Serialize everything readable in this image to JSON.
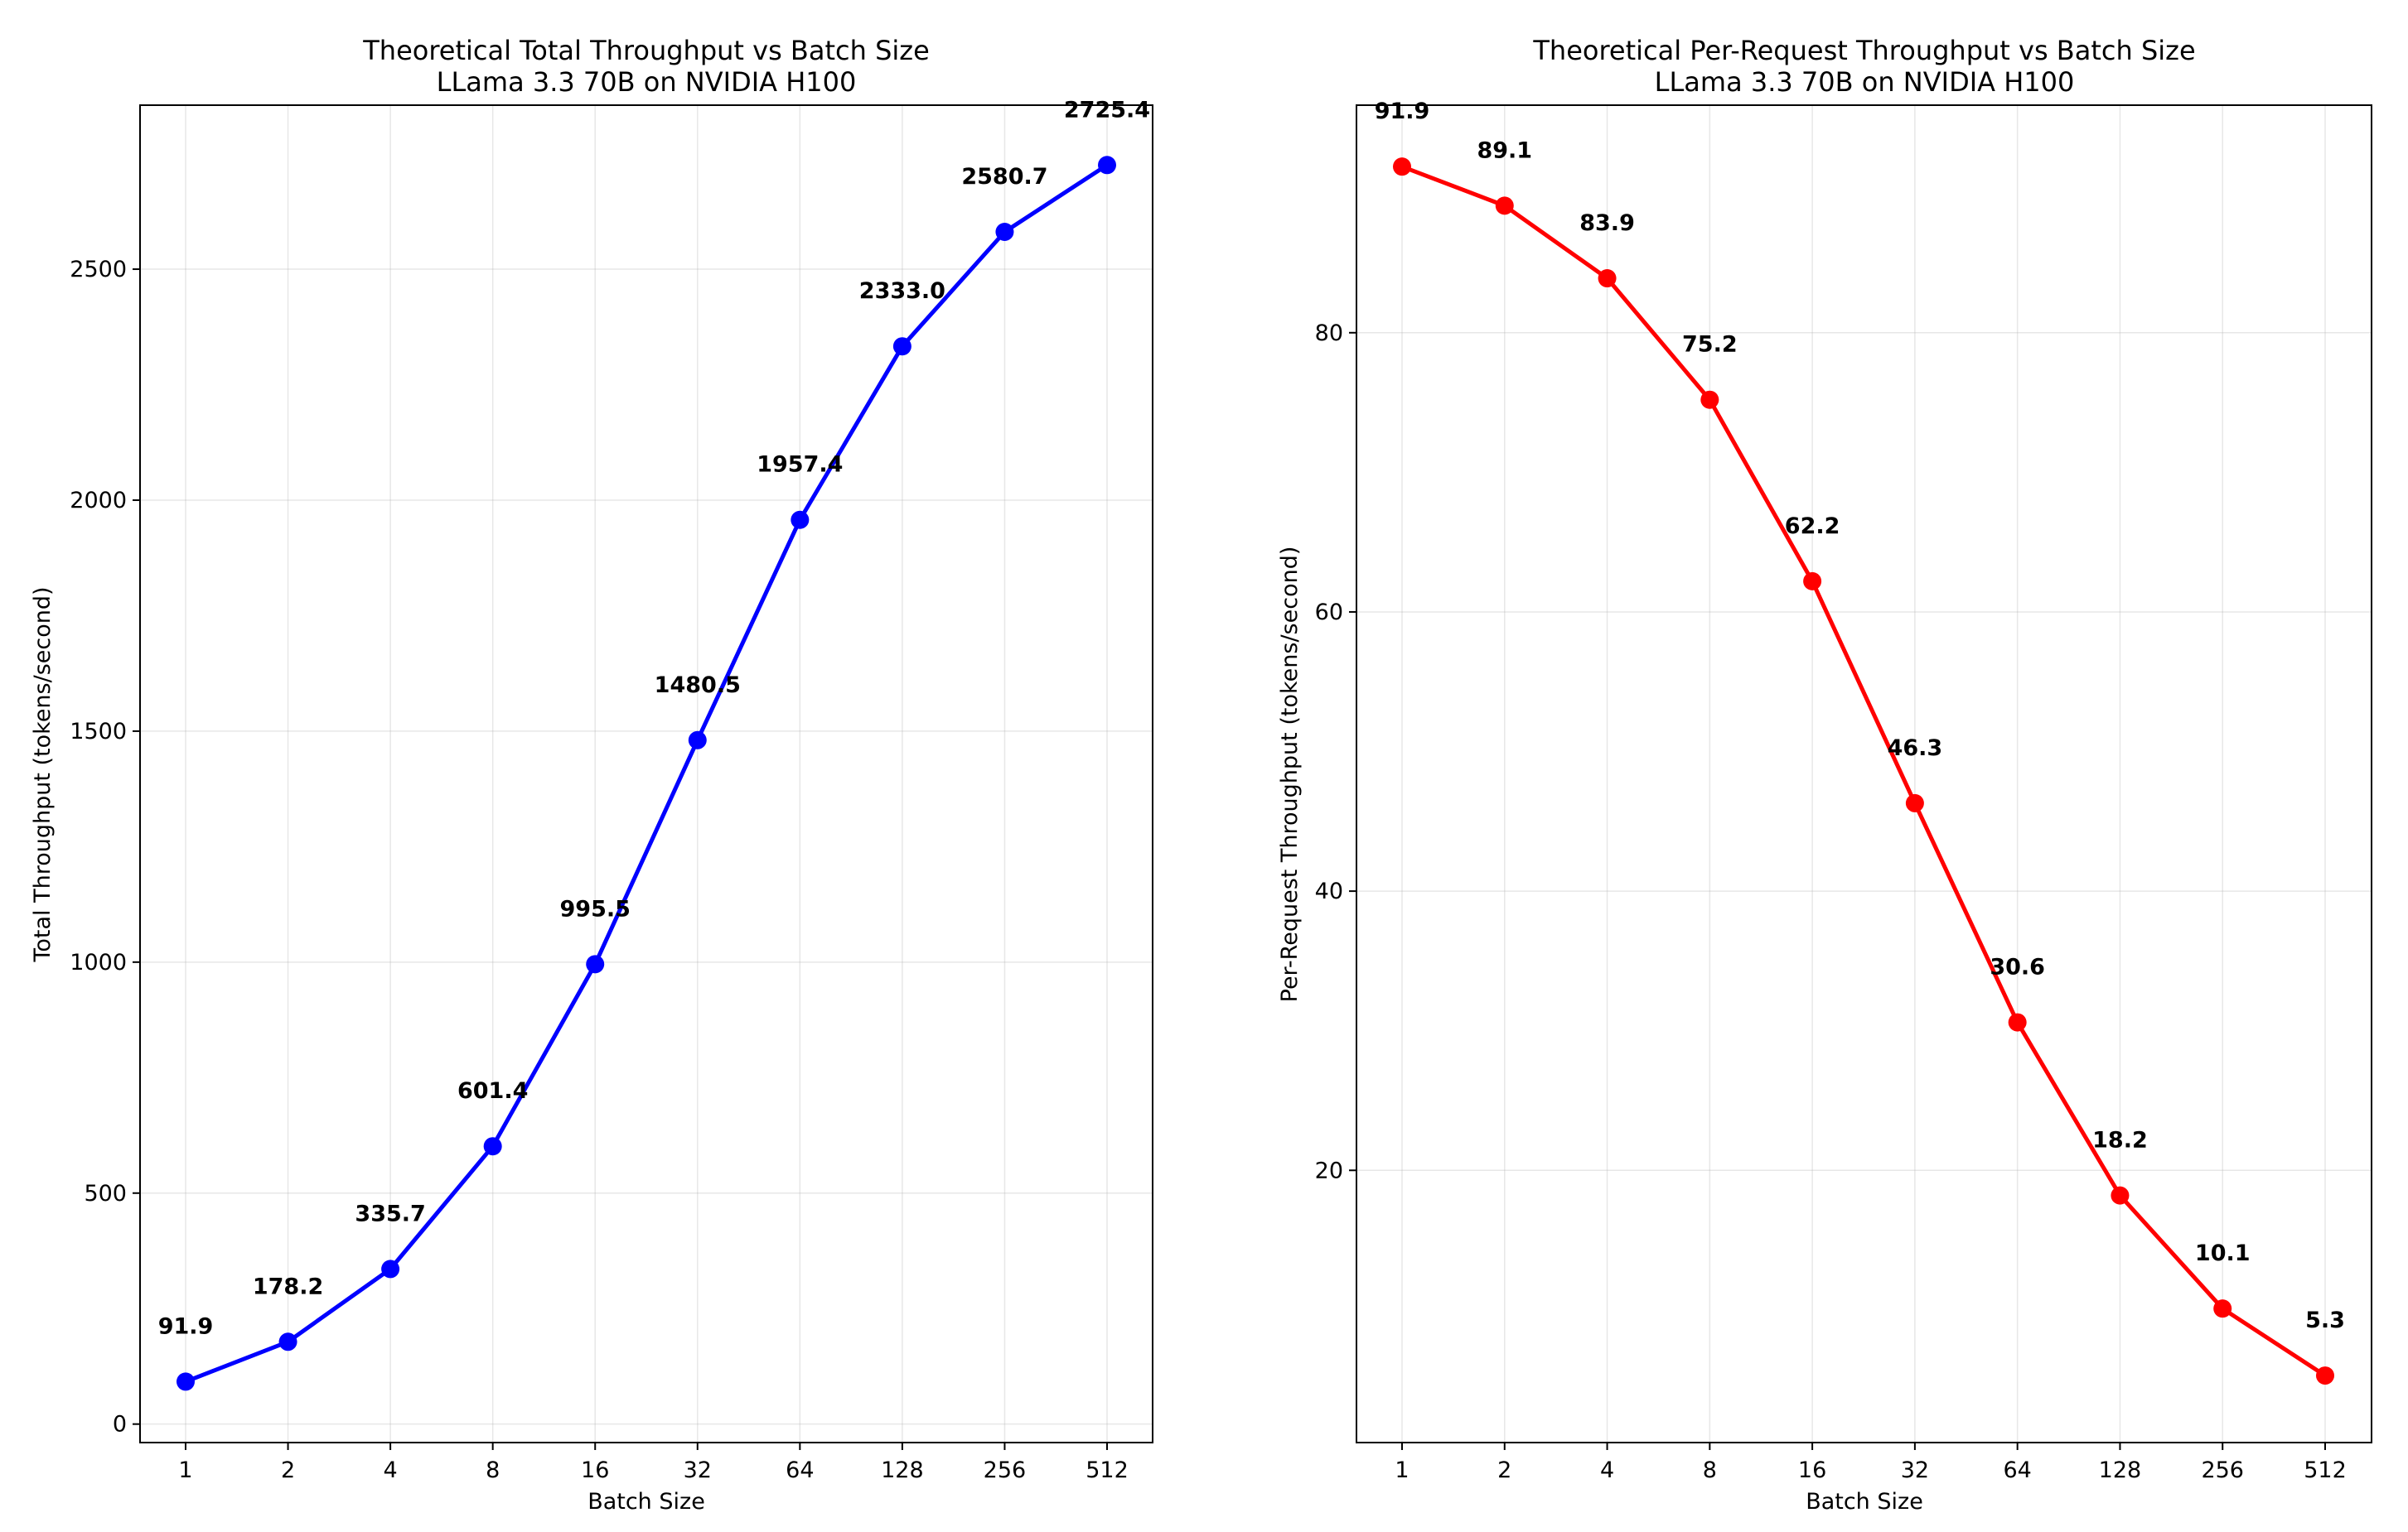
{
  "chart_data": [
    {
      "type": "line",
      "title": "Theoretical Total Throughput vs Batch Size",
      "subtitle": "LLama 3.3 70B on NVIDIA H100",
      "xlabel": "Batch Size",
      "ylabel": "Total Throughput (tokens/second)",
      "categories": [
        "1",
        "2",
        "4",
        "8",
        "16",
        "32",
        "64",
        "128",
        "256",
        "512"
      ],
      "x_scale": "log2",
      "series": [
        {
          "color": "#0000ff",
          "values": [
            91.9,
            178.2,
            335.7,
            601.4,
            995.5,
            1480.5,
            1957.4,
            2333.0,
            2580.7,
            2725.4
          ]
        }
      ],
      "data_labels": [
        "91.9",
        "178.2",
        "335.7",
        "601.4",
        "995.5",
        "1480.5",
        "1957.4",
        "2333.0",
        "2580.7",
        "2725.4"
      ],
      "ylim": [
        -40,
        2855
      ],
      "yticks": [
        0,
        500,
        1000,
        1500,
        2000,
        2500
      ],
      "grid": true
    },
    {
      "type": "line",
      "title": "Theoretical Per-Request Throughput vs Batch Size",
      "subtitle": "LLama 3.3 70B on NVIDIA H100",
      "xlabel": "Batch Size",
      "ylabel": "Per-Request Throughput (tokens/second)",
      "categories": [
        "1",
        "2",
        "4",
        "8",
        "16",
        "32",
        "64",
        "128",
        "256",
        "512"
      ],
      "x_scale": "log2",
      "series": [
        {
          "color": "#ff0000",
          "values": [
            91.9,
            89.1,
            83.9,
            75.2,
            62.2,
            46.3,
            30.6,
            18.2,
            10.1,
            5.3
          ]
        }
      ],
      "data_labels": [
        "91.9",
        "89.1",
        "83.9",
        "75.2",
        "62.2",
        "46.3",
        "30.6",
        "18.2",
        "10.1",
        "5.3"
      ],
      "ylim": [
        0.5,
        96.3
      ],
      "yticks": [
        20,
        40,
        60,
        80
      ],
      "grid": true
    }
  ]
}
